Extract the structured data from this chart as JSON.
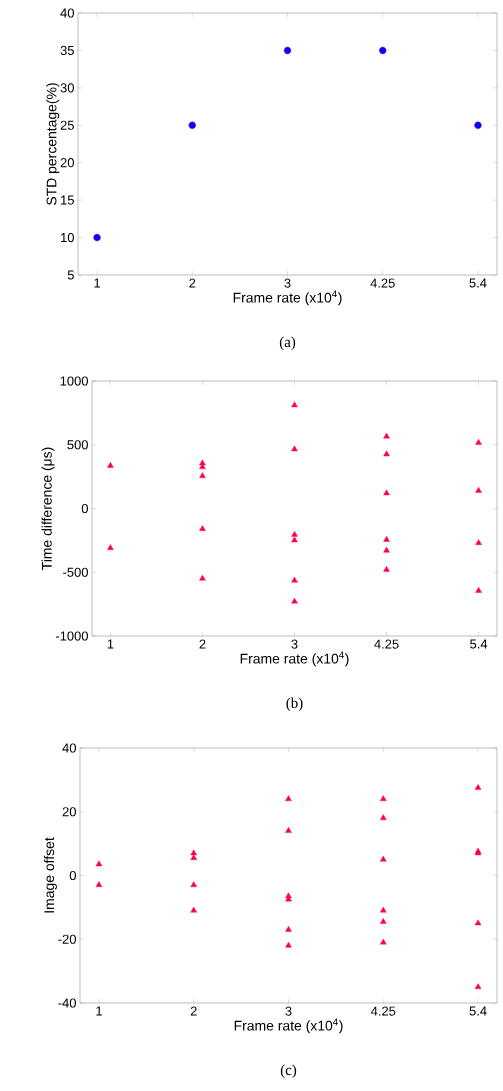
{
  "chart_data": [
    {
      "type": "scatter",
      "categories": [
        "1",
        "2",
        "3",
        "4.25",
        "5.4"
      ],
      "xlabel": "Frame rate (x10$^{4}$)",
      "ylabel": "STD percentage(%)",
      "ylim": [
        5,
        40
      ],
      "yticks": [
        5,
        10,
        15,
        20,
        25,
        30,
        35,
        40
      ],
      "marker": "circle",
      "series": [
        {
          "color": "#0000ff",
          "x": [
            "1",
            "2",
            "3",
            "4.25",
            "5.4"
          ],
          "values": [
            10,
            25,
            35,
            35,
            25
          ]
        }
      ],
      "annotations": [
        "(a)"
      ]
    },
    {
      "type": "scatter",
      "categories": [
        "1",
        "2",
        "3",
        "4.25",
        "5.4"
      ],
      "xlabel": "Frame rate (x10$^{4}$)",
      "ylabel": "Time difference (μs)",
      "ylim": [
        -1000,
        1000
      ],
      "yticks": [
        -1000,
        -500,
        0,
        500,
        1000
      ],
      "marker": "triangle",
      "series": [
        {
          "color": "#ff0050",
          "x": [
            "1",
            "1",
            "2",
            "2",
            "2",
            "2",
            "2",
            "3",
            "3",
            "3",
            "3",
            "3",
            "3",
            "4.25",
            "4.25",
            "4.25",
            "4.25",
            "4.25",
            "4.25",
            "5.4",
            "5.4",
            "5.4",
            "5.4"
          ],
          "values": [
            335,
            -310,
            355,
            325,
            255,
            -160,
            -550,
            810,
            465,
            -205,
            -250,
            -565,
            -730,
            565,
            425,
            120,
            -245,
            -330,
            -480,
            515,
            140,
            -270,
            -645
          ]
        }
      ],
      "annotations": [
        "(b)"
      ]
    },
    {
      "type": "scatter",
      "categories": [
        "1",
        "2",
        "3",
        "4.25",
        "5.4"
      ],
      "xlabel": "Frame rate (x10$^{4}$)",
      "ylabel": "Image offset",
      "ylim": [
        -40,
        40
      ],
      "yticks": [
        -40,
        -20,
        0,
        20,
        40
      ],
      "marker": "triangle",
      "series": [
        {
          "color": "#ff0050",
          "x": [
            "1",
            "1",
            "2",
            "2",
            "2",
            "2",
            "3",
            "3",
            "3",
            "3",
            "3",
            "3",
            "4.25",
            "4.25",
            "4.25",
            "4.25",
            "4.25",
            "4.25",
            "5.4",
            "5.4",
            "5.4",
            "5.4",
            "5.4"
          ],
          "values": [
            3.5,
            -3,
            7,
            5.5,
            -3,
            -11,
            24,
            14,
            -6.5,
            -7.5,
            -17,
            -22,
            24,
            18,
            5,
            -11,
            -14.5,
            -21,
            27.5,
            7.5,
            7,
            -15,
            -35
          ]
        }
      ],
      "annotations": [
        "(c)"
      ]
    }
  ]
}
